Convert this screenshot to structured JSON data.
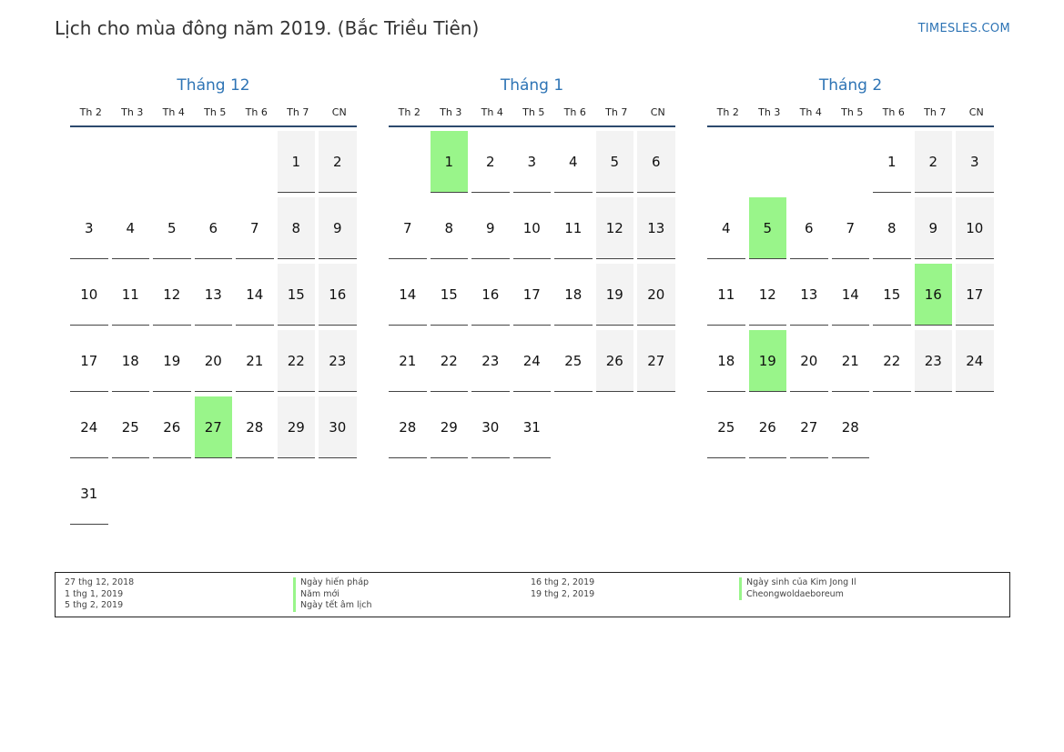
{
  "header": {
    "title": "Lịch cho mùa đông năm 2019. (Bắc Triều Tiên)",
    "site": "TIMESLES.COM"
  },
  "weekdays": [
    "Th 2",
    "Th 3",
    "Th 4",
    "Th 5",
    "Th 6",
    "Th 7",
    "CN"
  ],
  "months": [
    {
      "title": "Tháng 12",
      "offset": 5,
      "days": 31,
      "holidays": [
        27
      ]
    },
    {
      "title": "Tháng 1",
      "offset": 1,
      "days": 31,
      "holidays": [
        1
      ]
    },
    {
      "title": "Tháng 2",
      "offset": 4,
      "days": 28,
      "holidays": [
        5,
        16,
        19
      ]
    }
  ],
  "legend": {
    "left_dates": [
      "27 thg 12, 2018",
      "1 thg 1, 2019",
      "5 thg 2, 2019"
    ],
    "left_names": [
      "Ngày hiến pháp",
      "Năm mới",
      "Ngày tết âm lịch"
    ],
    "right_dates": [
      "16 thg 2, 2019",
      "19 thg 2, 2019"
    ],
    "right_names": [
      "Ngày sinh của Kim Jong Il",
      "Cheongwoldaeboreum"
    ]
  },
  "colors": {
    "holiday": "#99f58a",
    "weekend": "#f3f3f3",
    "accent": "#2e74b5"
  }
}
